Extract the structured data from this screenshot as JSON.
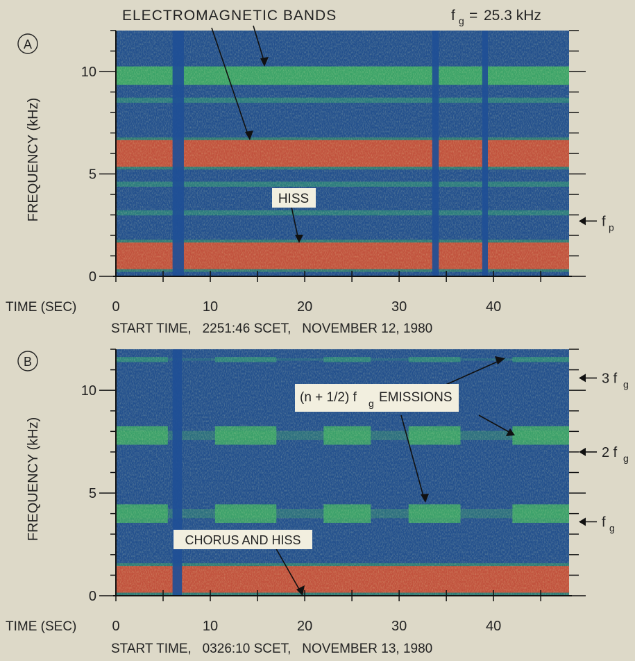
{
  "figure": {
    "top_title": "ELECTROMAGNETIC BANDS",
    "fg_value": "25.3 kHz"
  },
  "chart_data": [
    {
      "type": "heatmap",
      "panel_label": "A",
      "ylabel": "FREQUENCY (kHz)",
      "xlabel": "TIME (SEC)",
      "x_ticks": [
        "0",
        "10",
        "20",
        "30",
        "40"
      ],
      "y_ticks": [
        "0",
        "5",
        "10"
      ],
      "xlim": [
        0,
        48
      ],
      "ylim": [
        0,
        12
      ],
      "caption": "START TIME,   2251:46 SCET,   NOVEMBER 12, 1980",
      "annotations": [
        "HISS"
      ],
      "marker_labels": [
        "f",
        "p"
      ],
      "marker_values_khz": [
        2.7
      ],
      "bands": [
        {
          "freq_khz": 9.8,
          "intensity": "moderate"
        },
        {
          "freq_khz": 8.6,
          "intensity": "weak"
        },
        {
          "freq_khz": 6.0,
          "intensity": "strong"
        },
        {
          "freq_khz": 4.5,
          "intensity": "weak"
        },
        {
          "freq_khz": 3.1,
          "intensity": "weak"
        },
        {
          "freq_khz": 1.0,
          "intensity": "strong"
        }
      ],
      "data_gaps_sec": [
        [
          6.0,
          7.2
        ],
        [
          33.5,
          34.2
        ],
        [
          38.8,
          39.4
        ]
      ]
    },
    {
      "type": "heatmap",
      "panel_label": "B",
      "ylabel": "FREQUENCY (kHz)",
      "xlabel": "TIME (SEC)",
      "x_ticks": [
        "0",
        "10",
        "20",
        "30",
        "40"
      ],
      "y_ticks": [
        "0",
        "5",
        "10"
      ],
      "xlim": [
        0,
        48
      ],
      "ylim": [
        0,
        12
      ],
      "caption": "START TIME,   0326:10 SCET,   NOVEMBER 13, 1980",
      "annotations": [
        "CHORUS AND HISS",
        "(n + 1/2) f",
        "EMISSIONS"
      ],
      "marker_labels": [
        "3 f",
        "2 f",
        "f"
      ],
      "marker_values_khz": [
        10.6,
        7.0,
        3.6
      ],
      "bands": [
        {
          "freq_khz": 11.5,
          "intensity": "weak",
          "bursty": true
        },
        {
          "freq_khz": 7.8,
          "intensity": "moderate",
          "bursty": true
        },
        {
          "freq_khz": 4.0,
          "intensity": "moderate",
          "bursty": true
        },
        {
          "freq_khz": 0.8,
          "intensity": "strong",
          "bursty": false
        }
      ],
      "data_gaps_sec": [
        [
          6.0,
          7.0
        ]
      ]
    }
  ]
}
